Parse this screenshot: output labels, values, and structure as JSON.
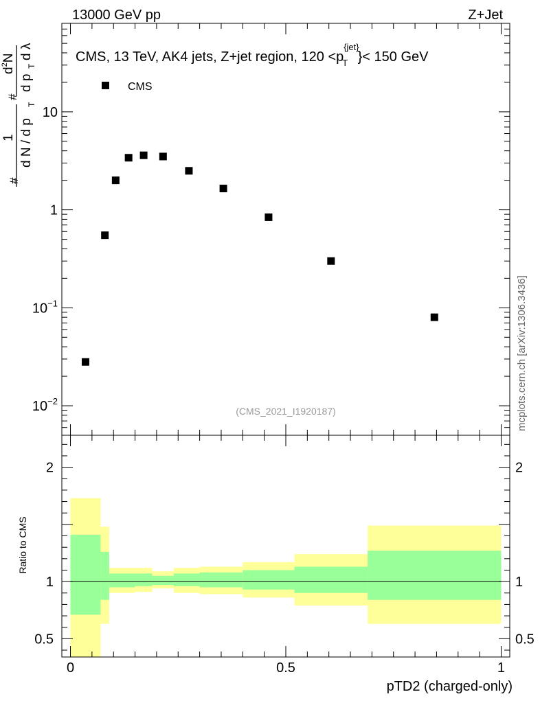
{
  "header": {
    "left": "13000 GeV pp",
    "right": "Z+Jet",
    "side_label": "mcplots.cern.ch [arXiv:1306.3436]",
    "watermark": "(CMS_2021_I1920187)"
  },
  "chart_data": [
    {
      "type": "scatter",
      "title_main": "CMS, 13 TeV, AK4 jets, Z+jet region, 120 <p",
      "title_sub": "T",
      "title_sup": "{jet}",
      "title_end": "}< 150 GeV",
      "ylabel": "1/(dN/dpT) d²N/(dpT dλ)",
      "ylabel_parts": {
        "hash1": "#",
        "one": "1",
        "den_left": "d N / d p",
        "den_sub": "T",
        "hash2": "#",
        "num": "d",
        "num_sup": "2",
        "num_n": "N",
        "dp": "d p",
        "dp_sub": "T",
        "dlambda": "d λ"
      },
      "yscale": "log",
      "ylim": [
        0.005,
        80
      ],
      "xlim": [
        -0.02,
        1.02
      ],
      "legend": {
        "placement": "top-left",
        "entries": [
          {
            "name": "CMS",
            "marker": "square"
          }
        ]
      },
      "y_ticks": [
        {
          "value": 10,
          "label": "10"
        },
        {
          "value": 1,
          "label": "1"
        },
        {
          "value": 0.1,
          "base": "10",
          "exp": "−1"
        },
        {
          "value": 0.01,
          "base": "10",
          "exp": "−2"
        }
      ],
      "series": [
        {
          "name": "CMS",
          "x": [
            0.035,
            0.08,
            0.105,
            0.135,
            0.17,
            0.215,
            0.275,
            0.355,
            0.46,
            0.605,
            0.845
          ],
          "values": [
            0.028,
            0.55,
            2.0,
            3.4,
            3.6,
            3.5,
            2.5,
            1.65,
            0.84,
            0.3,
            0.08
          ]
        }
      ]
    },
    {
      "type": "area",
      "ylabel": "Ratio to CMS",
      "xlabel": "pTD2 (charged-only)",
      "xlim": [
        -0.02,
        1.02
      ],
      "ylim": [
        0.34,
        2.28
      ],
      "reference_line": 1,
      "x_ticks": [
        {
          "value": 0,
          "label": "0"
        },
        {
          "value": 0.5,
          "label": "0.5"
        },
        {
          "value": 1,
          "label": "1"
        }
      ],
      "y_ticks": [
        {
          "value": 2,
          "label": "2"
        },
        {
          "value": 1,
          "label": "1"
        },
        {
          "value": 0.5,
          "label": "0.5"
        }
      ],
      "bins": [
        {
          "lo": 0.0,
          "hi": 0.07,
          "inner": [
            0.71,
            1.41
          ],
          "outer": [
            0.34,
            1.73
          ]
        },
        {
          "lo": 0.07,
          "hi": 0.09,
          "inner": [
            0.84,
            1.26
          ],
          "outer": [
            0.63,
            1.48
          ]
        },
        {
          "lo": 0.09,
          "hi": 0.15,
          "inner": [
            0.95,
            1.07
          ],
          "outer": [
            0.9,
            1.12
          ]
        },
        {
          "lo": 0.15,
          "hi": 0.19,
          "inner": [
            0.96,
            1.07
          ],
          "outer": [
            0.91,
            1.12
          ]
        },
        {
          "lo": 0.19,
          "hi": 0.24,
          "inner": [
            0.97,
            1.05
          ],
          "outer": [
            0.94,
            1.09
          ]
        },
        {
          "lo": 0.24,
          "hi": 0.3,
          "inner": [
            0.96,
            1.07
          ],
          "outer": [
            0.9,
            1.12
          ]
        },
        {
          "lo": 0.3,
          "hi": 0.4,
          "inner": [
            0.95,
            1.08
          ],
          "outer": [
            0.89,
            1.13
          ]
        },
        {
          "lo": 0.4,
          "hi": 0.52,
          "inner": [
            0.93,
            1.1
          ],
          "outer": [
            0.86,
            1.17
          ]
        },
        {
          "lo": 0.52,
          "hi": 0.69,
          "inner": [
            0.9,
            1.13
          ],
          "outer": [
            0.79,
            1.24
          ]
        },
        {
          "lo": 0.69,
          "hi": 1.0,
          "inner": [
            0.84,
            1.27
          ],
          "outer": [
            0.63,
            1.49
          ]
        }
      ],
      "colors": {
        "inner": "#99ff99",
        "outer": "#ffff99",
        "line": "#000000"
      }
    }
  ]
}
